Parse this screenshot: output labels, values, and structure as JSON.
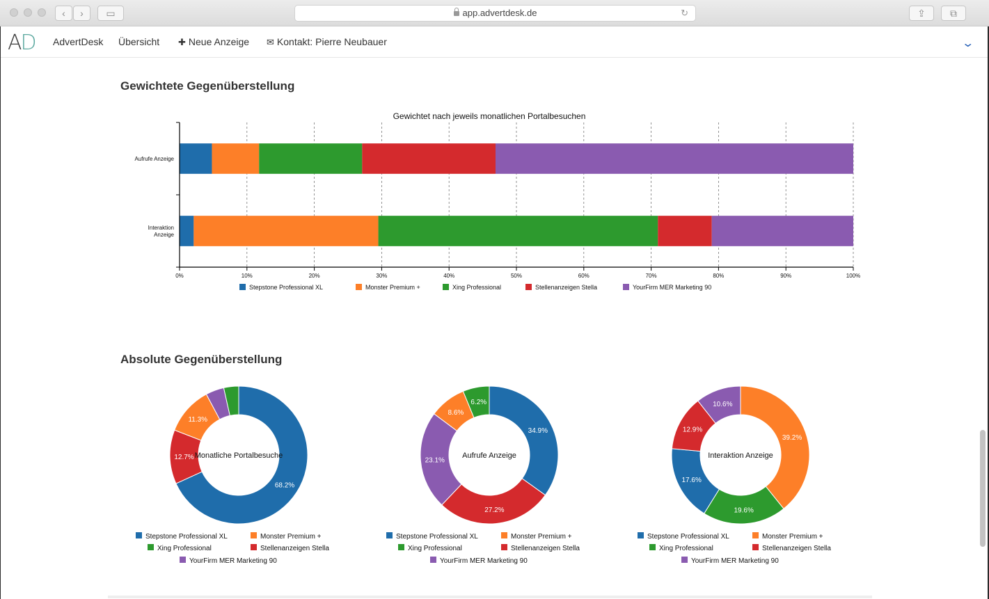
{
  "browser": {
    "url": "app.advertdesk.de"
  },
  "app": {
    "logo_a": "A",
    "logo_d": "D",
    "brand": "AdvertDesk",
    "nav": {
      "overview": "Übersicht",
      "new_ad": "Neue Anzeige",
      "contact": "Kontakt: Pierre Neubauer"
    }
  },
  "sections": {
    "weighted_title": "Gewichtete Gegenüberstellung",
    "absolute_title": "Absolute Gegenüberstellung"
  },
  "colors": {
    "Stepstone Professional XL": "#1f6dab",
    "Monster Premium +": "#fd7f28",
    "Xing Professional": "#2d9a2e",
    "Stellenanzeigen Stella": "#d42a2d",
    "YourFirm MER Marketing 90": "#8a5bb0"
  },
  "chart_data": [
    {
      "type": "bar",
      "orientation": "horizontal",
      "stacked": "percent",
      "title": "Gewichtet nach jeweils monatlichen Portalbesuchen",
      "categories": [
        "Aufrufe Anzeige",
        "Interaktion Anzeige"
      ],
      "series": [
        {
          "name": "Stepstone Professional XL",
          "values": [
            4.8,
            2.1
          ]
        },
        {
          "name": "Monster Premium +",
          "values": [
            7.0,
            27.4
          ]
        },
        {
          "name": "Xing Professional",
          "values": [
            15.3,
            41.5
          ]
        },
        {
          "name": "Stellenanzeigen Stella",
          "values": [
            19.8,
            8.0
          ]
        },
        {
          "name": "YourFirm MER Marketing 90",
          "values": [
            53.1,
            21.0
          ]
        }
      ],
      "xlim": [
        0,
        100
      ],
      "x_ticks": [
        "0%",
        "10%",
        "20%",
        "30%",
        "40%",
        "50%",
        "60%",
        "70%",
        "80%",
        "90%",
        "100%"
      ],
      "grid": true,
      "legend": "bottom"
    },
    {
      "type": "pie",
      "donut": true,
      "center_label": "Monatliche Portalbesuche",
      "slices": [
        {
          "name": "Stepstone Professional XL",
          "value": 68.2,
          "label": "68.2%"
        },
        {
          "name": "Stellenanzeigen Stella",
          "value": 12.7,
          "label": "12.7%"
        },
        {
          "name": "Monster Premium +",
          "value": 11.3,
          "label": "11.3%"
        },
        {
          "name": "YourFirm MER Marketing 90",
          "value": 4.3,
          "label": ""
        },
        {
          "name": "Xing Professional",
          "value": 3.5,
          "label": ""
        }
      ],
      "legend": "bottom"
    },
    {
      "type": "pie",
      "donut": true,
      "center_label": "Aufrufe Anzeige",
      "slices": [
        {
          "name": "Stepstone Professional XL",
          "value": 34.9,
          "label": "34.9%"
        },
        {
          "name": "Stellenanzeigen Stella",
          "value": 27.2,
          "label": "27.2%"
        },
        {
          "name": "YourFirm MER Marketing 90",
          "value": 23.1,
          "label": "23.1%"
        },
        {
          "name": "Monster Premium +",
          "value": 8.6,
          "label": "8.6%"
        },
        {
          "name": "Xing Professional",
          "value": 6.2,
          "label": "6.2%"
        }
      ],
      "legend": "bottom"
    },
    {
      "type": "pie",
      "donut": true,
      "center_label": "Interaktion Anzeige",
      "slices": [
        {
          "name": "Monster Premium +",
          "value": 39.2,
          "label": "39.2%"
        },
        {
          "name": "Xing Professional",
          "value": 19.6,
          "label": "19.6%"
        },
        {
          "name": "Stepstone Professional XL",
          "value": 17.6,
          "label": "17.6%"
        },
        {
          "name": "Stellenanzeigen Stella",
          "value": 12.9,
          "label": "12.9%"
        },
        {
          "name": "YourFirm MER Marketing 90",
          "value": 10.6,
          "label": "10.6%"
        }
      ],
      "legend": "bottom"
    }
  ]
}
